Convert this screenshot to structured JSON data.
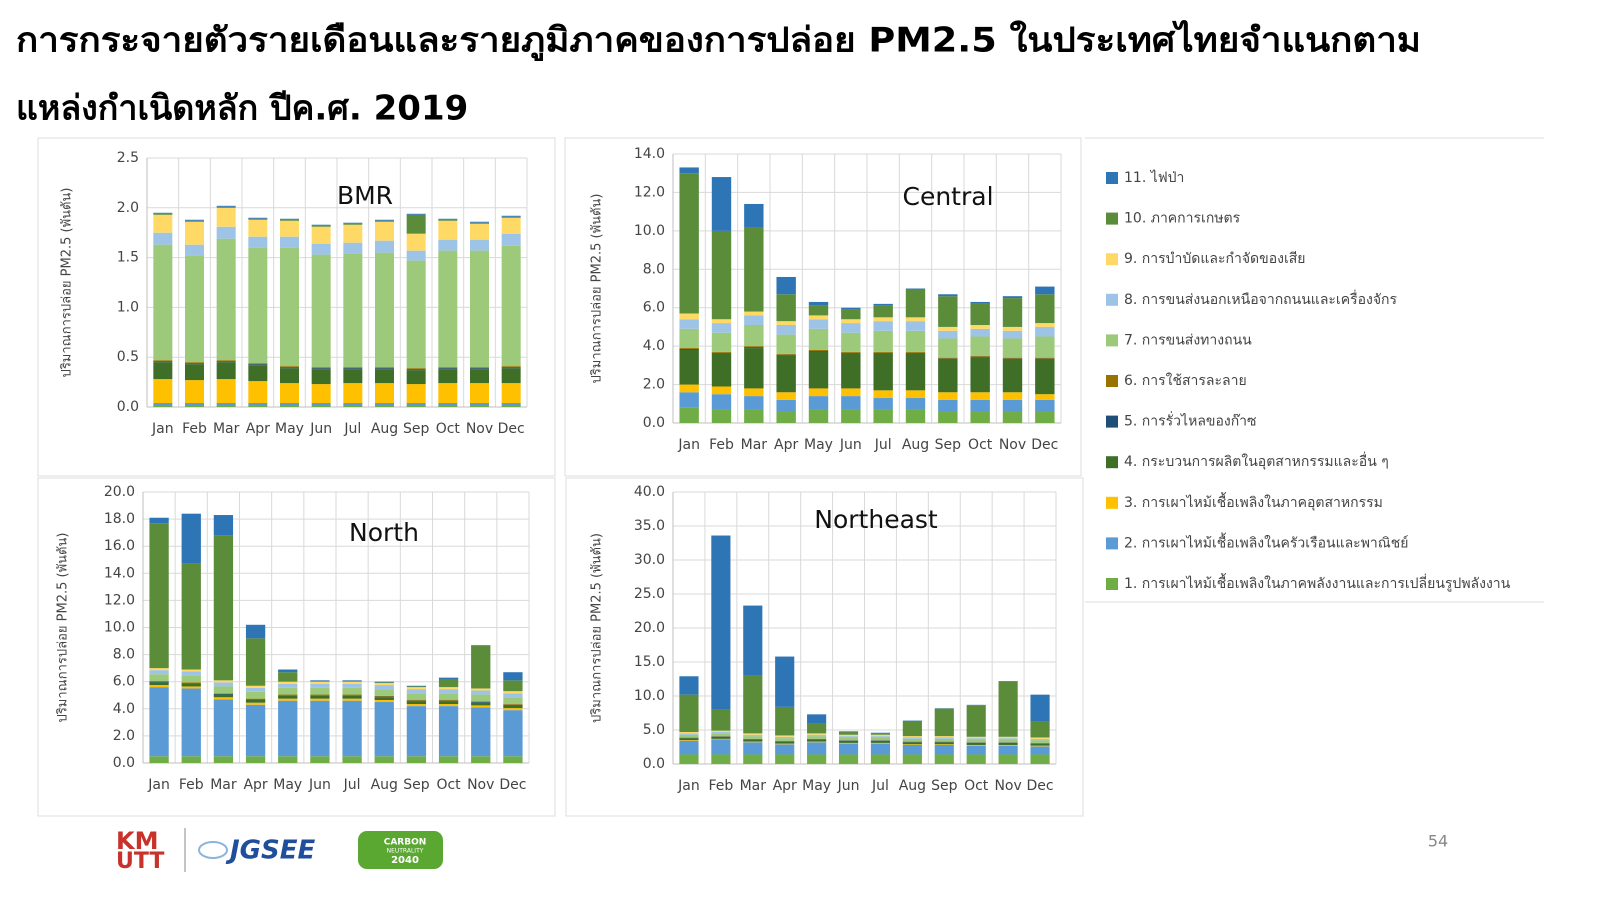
{
  "header": {
    "title_lines": [
      "การกระจายตัวรายเดือนและรายภูมิภาคของการปล่อย PM2.5 ในประเทศไทยจำแนกตาม",
      "แหล่งกำเนิดหลัก ปีค.ศ. 2019"
    ]
  },
  "legend": [
    {
      "name": "1. การเผาไหม้เชื้อเพลิงในภาคพลังงานและการเปลี่ยนรูปพลังงาน",
      "color": "#70ad47"
    },
    {
      "name": "2. การเผาไหม้เชื้อเพลิงในครัวเรือนและพาณิชย์",
      "color": "#5b9bd5"
    },
    {
      "name": "3. การเผาไหม้เชื้อเพลิงในภาคอุตสาหกรรม",
      "color": "#ffc000"
    },
    {
      "name": "4. กระบวนการผลิตในอุตสาหกรรมและอื่น ๆ",
      "color": "#3f6f27"
    },
    {
      "name": "5. การรั่วไหลของก๊าซ",
      "color": "#1f4e79"
    },
    {
      "name": "6. การใช้สารละลาย",
      "color": "#997300"
    },
    {
      "name": "7. การขนส่งทางถนน",
      "color": "#9cc97a"
    },
    {
      "name": "8. การขนส่งนอกเหนือจากถนนและเครื่องจักร",
      "color": "#9dc3e6"
    },
    {
      "name": "9. การบำบัดและกำจัดของเสีย",
      "color": "#ffd966"
    },
    {
      "name": "10. ภาคการเกษตร",
      "color": "#5b8c3a"
    },
    {
      "name": "11. ไฟป่า",
      "color": "#2e75b6"
    }
  ],
  "chart_data": [
    {
      "type": "bar",
      "stacked": true,
      "title": "BMR",
      "y_label": "ปริมาณการปล่อย PM2.5 (พันตัน)",
      "grid": true,
      "categories": [
        "Jan",
        "Feb",
        "Mar",
        "Apr",
        "May",
        "Jun",
        "Jul",
        "Aug",
        "Sep",
        "Oct",
        "Nov",
        "Dec"
      ],
      "ylim": [
        0,
        2.5
      ],
      "yticks": [
        {
          "value": 0,
          "label": "0.0"
        },
        0.5,
        {
          "value": 1,
          "label": "1.0"
        },
        1.5,
        {
          "value": 2,
          "label": "2.0"
        },
        2.5
      ],
      "series": [
        {
          "values": [
            0.02,
            0.02,
            0.02,
            0.02,
            0.02,
            0.02,
            0.02,
            0.02,
            0.02,
            0.02,
            0.02,
            0.02
          ]
        },
        {
          "values": [
            0.02,
            0.02,
            0.02,
            0.02,
            0.02,
            0.02,
            0.02,
            0.02,
            0.02,
            0.02,
            0.02,
            0.02
          ]
        },
        {
          "values": [
            0.24,
            0.23,
            0.24,
            0.22,
            0.2,
            0.19,
            0.2,
            0.2,
            0.19,
            0.2,
            0.2,
            0.2
          ]
        },
        {
          "values": [
            0.17,
            0.16,
            0.17,
            0.16,
            0.15,
            0.15,
            0.14,
            0.14,
            0.14,
            0.14,
            0.14,
            0.15
          ]
        },
        {
          "values": [
            0.01,
            0.01,
            0.01,
            0.01,
            0.01,
            0.01,
            0.01,
            0.01,
            0.01,
            0.01,
            0.01,
            0.01
          ]
        },
        {
          "values": [
            0.01,
            0.01,
            0.01,
            0.01,
            0.01,
            0.01,
            0.01,
            0.01,
            0.01,
            0.01,
            0.01,
            0.01
          ]
        },
        {
          "values": [
            1.16,
            1.07,
            1.22,
            1.16,
            1.19,
            1.13,
            1.14,
            1.15,
            1.08,
            1.17,
            1.17,
            1.21
          ]
        },
        {
          "values": [
            0.12,
            0.11,
            0.12,
            0.11,
            0.11,
            0.11,
            0.11,
            0.12,
            0.1,
            0.11,
            0.11,
            0.12
          ]
        },
        {
          "values": [
            0.18,
            0.23,
            0.19,
            0.17,
            0.16,
            0.17,
            0.18,
            0.19,
            0.17,
            0.19,
            0.16,
            0.16
          ]
        },
        {
          "values": [
            0.01,
            0.01,
            0.01,
            0.01,
            0.01,
            0.01,
            0.01,
            0.01,
            0.19,
            0.01,
            0.01,
            0.01
          ]
        },
        {
          "values": [
            0.01,
            0.01,
            0.01,
            0.01,
            0.01,
            0.01,
            0.01,
            0.01,
            0.01,
            0.01,
            0.01,
            0.01
          ]
        }
      ]
    },
    {
      "type": "bar",
      "stacked": true,
      "title": "Central",
      "y_label": "ปริมาณการปล่อย PM2.5 (พันตัน)",
      "grid": true,
      "categories": [
        "Jan",
        "Feb",
        "Mar",
        "Apr",
        "May",
        "Jun",
        "Jul",
        "Aug",
        "Sep",
        "Oct",
        "Nov",
        "Dec"
      ],
      "ylim": [
        0,
        14
      ],
      "yticks": [
        {
          "value": 0,
          "label": "0.0"
        },
        {
          "value": 2,
          "label": "2.0"
        },
        {
          "value": 4,
          "label": "4.0"
        },
        {
          "value": 6,
          "label": "6.0"
        },
        {
          "value": 8,
          "label": "8.0"
        },
        {
          "value": 10,
          "label": "10.0"
        },
        {
          "value": 12,
          "label": "12.0"
        },
        {
          "value": 14,
          "label": "14.0"
        }
      ],
      "series": [
        {
          "values": [
            0.8,
            0.7,
            0.7,
            0.6,
            0.7,
            0.7,
            0.7,
            0.7,
            0.6,
            0.6,
            0.6,
            0.6
          ]
        },
        {
          "values": [
            0.8,
            0.8,
            0.7,
            0.6,
            0.7,
            0.7,
            0.6,
            0.6,
            0.6,
            0.6,
            0.6,
            0.6
          ]
        },
        {
          "values": [
            0.4,
            0.4,
            0.4,
            0.4,
            0.4,
            0.4,
            0.4,
            0.4,
            0.4,
            0.4,
            0.4,
            0.3
          ]
        },
        {
          "values": [
            1.8,
            1.7,
            2.1,
            1.9,
            1.9,
            1.8,
            1.9,
            1.9,
            1.7,
            1.8,
            1.7,
            1.8
          ]
        },
        {
          "values": [
            0.05,
            0.05,
            0.05,
            0.05,
            0.05,
            0.05,
            0.05,
            0.05,
            0.05,
            0.05,
            0.05,
            0.05
          ]
        },
        {
          "values": [
            0.05,
            0.05,
            0.05,
            0.05,
            0.05,
            0.05,
            0.05,
            0.05,
            0.05,
            0.05,
            0.05,
            0.05
          ]
        },
        {
          "values": [
            1.0,
            1.0,
            1.1,
            1.0,
            1.1,
            1.0,
            1.1,
            1.1,
            1.0,
            1.0,
            1.0,
            1.1
          ]
        },
        {
          "values": [
            0.5,
            0.5,
            0.5,
            0.5,
            0.5,
            0.5,
            0.5,
            0.5,
            0.4,
            0.4,
            0.4,
            0.5
          ]
        },
        {
          "values": [
            0.3,
            0.2,
            0.2,
            0.2,
            0.2,
            0.2,
            0.2,
            0.2,
            0.2,
            0.2,
            0.2,
            0.2
          ]
        },
        {
          "values": [
            7.3,
            4.6,
            4.4,
            1.4,
            0.5,
            0.5,
            0.6,
            1.45,
            1.6,
            1.1,
            1.5,
            1.5
          ]
        },
        {
          "values": [
            0.3,
            2.8,
            1.2,
            0.9,
            0.2,
            0.1,
            0.1,
            0.05,
            0.1,
            0.1,
            0.1,
            0.4
          ]
        }
      ]
    },
    {
      "type": "bar",
      "stacked": true,
      "title": "North",
      "y_label": "ปริมาณการปล่อย PM2.5 (พันตัน)",
      "grid": true,
      "categories": [
        "Jan",
        "Feb",
        "Mar",
        "Apr",
        "May",
        "Jun",
        "Jul",
        "Aug",
        "Sep",
        "Oct",
        "Nov",
        "Dec"
      ],
      "ylim": [
        0,
        20
      ],
      "yticks": [
        {
          "value": 0,
          "label": "0.0"
        },
        {
          "value": 2,
          "label": "2.0"
        },
        {
          "value": 4,
          "label": "4.0"
        },
        {
          "value": 6,
          "label": "6.0"
        },
        {
          "value": 8,
          "label": "8.0"
        },
        {
          "value": 10,
          "label": "10.0"
        },
        {
          "value": 12,
          "label": "12.0"
        },
        {
          "value": 14,
          "label": "14.0"
        },
        {
          "value": 16,
          "label": "16.0"
        },
        {
          "value": 18,
          "label": "18.0"
        },
        {
          "value": 20,
          "label": "20.0"
        }
      ],
      "series": [
        {
          "values": [
            0.5,
            0.5,
            0.5,
            0.5,
            0.5,
            0.5,
            0.5,
            0.5,
            0.5,
            0.5,
            0.5,
            0.5
          ]
        },
        {
          "values": [
            5.1,
            5.0,
            4.2,
            3.8,
            4.1,
            4.1,
            4.1,
            4.0,
            3.7,
            3.7,
            3.6,
            3.4
          ]
        },
        {
          "values": [
            0.15,
            0.15,
            0.15,
            0.15,
            0.15,
            0.15,
            0.15,
            0.15,
            0.15,
            0.15,
            0.15,
            0.15
          ]
        },
        {
          "values": [
            0.2,
            0.2,
            0.2,
            0.2,
            0.2,
            0.2,
            0.2,
            0.2,
            0.2,
            0.2,
            0.2,
            0.2
          ]
        },
        {
          "values": [
            0.05,
            0.05,
            0.05,
            0.05,
            0.05,
            0.05,
            0.05,
            0.05,
            0.05,
            0.05,
            0.05,
            0.05
          ]
        },
        {
          "values": [
            0.05,
            0.05,
            0.05,
            0.05,
            0.05,
            0.05,
            0.05,
            0.05,
            0.05,
            0.05,
            0.05,
            0.05
          ]
        },
        {
          "values": [
            0.5,
            0.5,
            0.5,
            0.5,
            0.5,
            0.5,
            0.5,
            0.5,
            0.5,
            0.5,
            0.5,
            0.5
          ]
        },
        {
          "values": [
            0.3,
            0.3,
            0.3,
            0.3,
            0.3,
            0.3,
            0.3,
            0.3,
            0.3,
            0.3,
            0.3,
            0.3
          ]
        },
        {
          "values": [
            0.15,
            0.15,
            0.15,
            0.15,
            0.15,
            0.15,
            0.15,
            0.15,
            0.15,
            0.15,
            0.15,
            0.15
          ]
        },
        {
          "values": [
            10.7,
            7.8,
            10.7,
            3.5,
            0.7,
            0.05,
            0.05,
            0.05,
            0.05,
            0.6,
            3.15,
            0.8
          ]
        },
        {
          "values": [
            0.4,
            3.7,
            1.5,
            1.0,
            0.2,
            0.05,
            0.05,
            0.05,
            0.05,
            0.1,
            0.05,
            0.6
          ]
        }
      ]
    },
    {
      "type": "bar",
      "stacked": true,
      "title": "Northeast",
      "y_label": "ปริมาณการปล่อย PM2.5 (พันตัน)",
      "grid": true,
      "categories": [
        "Jan",
        "Feb",
        "Mar",
        "Apr",
        "May",
        "Jun",
        "Jul",
        "Aug",
        "Sep",
        "Oct",
        "Nov",
        "Dec"
      ],
      "ylim": [
        0,
        40
      ],
      "yticks": [
        {
          "value": 0,
          "label": "0.0"
        },
        {
          "value": 5,
          "label": "5.0"
        },
        {
          "value": 10,
          "label": "10.0"
        },
        {
          "value": 15,
          "label": "15.0"
        },
        {
          "value": 20,
          "label": "20.0"
        },
        {
          "value": 25,
          "label": "25.0"
        },
        {
          "value": 30,
          "label": "30.0"
        },
        {
          "value": 35,
          "label": "35.0"
        },
        {
          "value": 40,
          "label": "40.0"
        }
      ],
      "series": [
        {
          "values": [
            1.4,
            1.4,
            1.4,
            1.4,
            1.4,
            1.4,
            1.4,
            1.4,
            1.4,
            1.4,
            1.4,
            1.4
          ]
        },
        {
          "values": [
            2.0,
            2.2,
            1.8,
            1.5,
            1.8,
            1.6,
            1.6,
            1.4,
            1.4,
            1.3,
            1.3,
            1.2
          ]
        },
        {
          "values": [
            0.1,
            0.1,
            0.1,
            0.1,
            0.1,
            0.1,
            0.1,
            0.1,
            0.1,
            0.1,
            0.1,
            0.1
          ]
        },
        {
          "values": [
            0.3,
            0.3,
            0.3,
            0.3,
            0.3,
            0.3,
            0.3,
            0.3,
            0.3,
            0.3,
            0.3,
            0.3
          ]
        },
        {
          "values": [
            0.05,
            0.05,
            0.05,
            0.05,
            0.05,
            0.05,
            0.05,
            0.05,
            0.05,
            0.05,
            0.05,
            0.05
          ]
        },
        {
          "values": [
            0.05,
            0.05,
            0.05,
            0.05,
            0.05,
            0.05,
            0.05,
            0.05,
            0.05,
            0.05,
            0.05,
            0.05
          ]
        },
        {
          "values": [
            0.4,
            0.4,
            0.4,
            0.4,
            0.4,
            0.4,
            0.4,
            0.4,
            0.4,
            0.4,
            0.4,
            0.4
          ]
        },
        {
          "values": [
            0.2,
            0.2,
            0.2,
            0.2,
            0.2,
            0.2,
            0.2,
            0.2,
            0.2,
            0.2,
            0.2,
            0.2
          ]
        },
        {
          "values": [
            0.2,
            0.2,
            0.2,
            0.2,
            0.2,
            0.2,
            0.2,
            0.2,
            0.2,
            0.2,
            0.2,
            0.2
          ]
        },
        {
          "values": [
            5.5,
            3.1,
            8.5,
            4.2,
            1.4,
            0.4,
            0.25,
            2.25,
            4.05,
            4.65,
            8.15,
            2.3
          ]
        },
        {
          "values": [
            2.7,
            25.6,
            10.3,
            7.4,
            1.4,
            0.1,
            0.05,
            0.05,
            0.05,
            0.05,
            0.05,
            4.0
          ]
        }
      ]
    }
  ],
  "footer": {
    "kmutt": [
      "KM",
      "UTT"
    ],
    "jgsee": "JGSEE",
    "carbon": [
      "CARBON",
      "NEUTRALITY",
      "2040"
    ],
    "page_number": "54"
  }
}
